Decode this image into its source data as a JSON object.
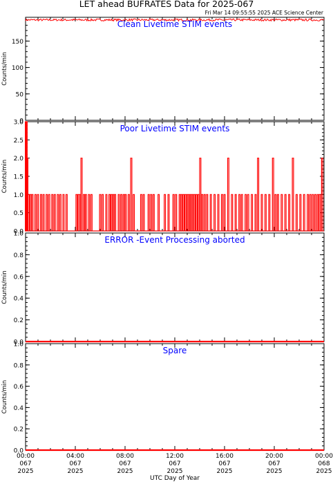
{
  "header": {
    "title": "LET ahead BUFRATES Data for 2025-067",
    "timestamp": "Fri Mar 14 09:55:55 2025 ACE Science Center"
  },
  "colors": {
    "data": "#ff0000",
    "panel_title": "#0000ff",
    "axes": "#000000",
    "background": "#ffffff"
  },
  "xaxis": {
    "label": "UTC Day of Year",
    "range_hours": [
      0,
      24
    ],
    "ticks": [
      {
        "hour": 0,
        "time": "00:00",
        "doy": "067",
        "year": "2025"
      },
      {
        "hour": 4,
        "time": "04:00",
        "doy": "067",
        "year": "2025"
      },
      {
        "hour": 8,
        "time": "08:00",
        "doy": "067",
        "year": "2025"
      },
      {
        "hour": 12,
        "time": "12:00",
        "doy": "067",
        "year": "2025"
      },
      {
        "hour": 16,
        "time": "16:00",
        "doy": "067",
        "year": "2025"
      },
      {
        "hour": 20,
        "time": "20:00",
        "doy": "067",
        "year": "2025"
      },
      {
        "hour": 24,
        "time": "00:00",
        "doy": "068",
        "year": "2025"
      }
    ]
  },
  "chart_data": [
    {
      "type": "line",
      "title": "Clean Livetime STIM events",
      "ylabel": "Counts/min",
      "ylim": [
        0,
        195
      ],
      "yticks": [
        0,
        50,
        100,
        150
      ],
      "ytick_labels": [
        "0",
        "50",
        "100",
        "150"
      ],
      "series": [
        {
          "x": [
            0.0,
            24.0
          ],
          "y": [
            190,
            190
          ],
          "noise": 2
        }
      ]
    },
    {
      "type": "line",
      "title": "Poor Livetime STIM events",
      "ylabel": "Counts/min",
      "ylim": [
        0,
        3.0
      ],
      "yticks": [
        0.0,
        0.5,
        1.0,
        1.5,
        2.0,
        2.5,
        3.0
      ],
      "ytick_labels": [
        "0.0",
        "0.5",
        "1.0",
        "1.5",
        "2.0",
        "2.5",
        "3.0"
      ],
      "baseline": 0,
      "spikes": [
        {
          "x": 0.03,
          "y": 3
        },
        {
          "x": 0.08,
          "y": 3
        },
        {
          "x": 0.14,
          "y": 2
        },
        {
          "x": 0.25,
          "y": 1
        },
        {
          "x": 0.4,
          "y": 1
        },
        {
          "x": 0.55,
          "y": 1
        },
        {
          "x": 0.8,
          "y": 1
        },
        {
          "x": 1.0,
          "y": 1
        },
        {
          "x": 1.25,
          "y": 1
        },
        {
          "x": 1.45,
          "y": 1
        },
        {
          "x": 1.7,
          "y": 1
        },
        {
          "x": 1.9,
          "y": 1
        },
        {
          "x": 2.15,
          "y": 1
        },
        {
          "x": 2.35,
          "y": 1
        },
        {
          "x": 2.6,
          "y": 1
        },
        {
          "x": 2.8,
          "y": 1
        },
        {
          "x": 3.05,
          "y": 1
        },
        {
          "x": 3.3,
          "y": 1
        },
        {
          "x": 4.1,
          "y": 1
        },
        {
          "x": 4.25,
          "y": 1
        },
        {
          "x": 4.35,
          "y": 1
        },
        {
          "x": 4.5,
          "y": 2
        },
        {
          "x": 4.7,
          "y": 1
        },
        {
          "x": 4.85,
          "y": 1
        },
        {
          "x": 5.1,
          "y": 1
        },
        {
          "x": 5.3,
          "y": 1
        },
        {
          "x": 6.0,
          "y": 1
        },
        {
          "x": 6.2,
          "y": 1
        },
        {
          "x": 6.5,
          "y": 1
        },
        {
          "x": 6.75,
          "y": 1
        },
        {
          "x": 6.9,
          "y": 1
        },
        {
          "x": 7.05,
          "y": 1
        },
        {
          "x": 7.2,
          "y": 1
        },
        {
          "x": 7.5,
          "y": 1
        },
        {
          "x": 7.7,
          "y": 1
        },
        {
          "x": 7.9,
          "y": 1
        },
        {
          "x": 8.05,
          "y": 1
        },
        {
          "x": 8.3,
          "y": 1
        },
        {
          "x": 8.5,
          "y": 2
        },
        {
          "x": 8.7,
          "y": 1
        },
        {
          "x": 9.3,
          "y": 1
        },
        {
          "x": 9.5,
          "y": 1
        },
        {
          "x": 9.9,
          "y": 1
        },
        {
          "x": 10.1,
          "y": 1
        },
        {
          "x": 10.3,
          "y": 1
        },
        {
          "x": 10.7,
          "y": 1
        },
        {
          "x": 11.2,
          "y": 1
        },
        {
          "x": 11.5,
          "y": 1
        },
        {
          "x": 11.9,
          "y": 1
        },
        {
          "x": 12.1,
          "y": 1
        },
        {
          "x": 12.4,
          "y": 1
        },
        {
          "x": 12.55,
          "y": 1
        },
        {
          "x": 12.7,
          "y": 1
        },
        {
          "x": 12.85,
          "y": 1
        },
        {
          "x": 13.0,
          "y": 1
        },
        {
          "x": 13.15,
          "y": 1
        },
        {
          "x": 13.3,
          "y": 1
        },
        {
          "x": 13.45,
          "y": 1
        },
        {
          "x": 13.6,
          "y": 1
        },
        {
          "x": 13.75,
          "y": 1
        },
        {
          "x": 13.9,
          "y": 1
        },
        {
          "x": 14.05,
          "y": 2
        },
        {
          "x": 14.2,
          "y": 1
        },
        {
          "x": 14.4,
          "y": 1
        },
        {
          "x": 14.6,
          "y": 1
        },
        {
          "x": 14.9,
          "y": 1
        },
        {
          "x": 15.2,
          "y": 1
        },
        {
          "x": 15.5,
          "y": 1
        },
        {
          "x": 15.8,
          "y": 1
        },
        {
          "x": 16.0,
          "y": 1
        },
        {
          "x": 16.3,
          "y": 2
        },
        {
          "x": 16.6,
          "y": 1
        },
        {
          "x": 16.9,
          "y": 1
        },
        {
          "x": 17.2,
          "y": 1
        },
        {
          "x": 17.4,
          "y": 1
        },
        {
          "x": 17.7,
          "y": 1
        },
        {
          "x": 17.9,
          "y": 1
        },
        {
          "x": 18.2,
          "y": 1
        },
        {
          "x": 18.5,
          "y": 1
        },
        {
          "x": 18.7,
          "y": 2
        },
        {
          "x": 19.0,
          "y": 1
        },
        {
          "x": 19.3,
          "y": 1
        },
        {
          "x": 19.6,
          "y": 1
        },
        {
          "x": 19.9,
          "y": 2
        },
        {
          "x": 20.1,
          "y": 1
        },
        {
          "x": 20.3,
          "y": 1
        },
        {
          "x": 20.6,
          "y": 1
        },
        {
          "x": 20.9,
          "y": 1
        },
        {
          "x": 21.2,
          "y": 1
        },
        {
          "x": 21.5,
          "y": 2
        },
        {
          "x": 21.8,
          "y": 1
        },
        {
          "x": 22.1,
          "y": 1
        },
        {
          "x": 22.4,
          "y": 1
        },
        {
          "x": 22.7,
          "y": 1
        },
        {
          "x": 22.9,
          "y": 1
        },
        {
          "x": 23.1,
          "y": 1
        },
        {
          "x": 23.3,
          "y": 1
        },
        {
          "x": 23.5,
          "y": 1
        },
        {
          "x": 23.65,
          "y": 1
        },
        {
          "x": 23.85,
          "y": 2
        }
      ]
    },
    {
      "type": "line",
      "title": "ERROR -Event Processing aborted",
      "ylabel": "Counts/min",
      "ylim": [
        0,
        1.0
      ],
      "yticks": [
        0.0,
        0.2,
        0.4,
        0.6,
        0.8,
        1.0
      ],
      "ytick_labels": [
        "0.0",
        "0.2",
        "0.4",
        "0.6",
        "0.8",
        "1.0"
      ],
      "series": [
        {
          "x": [
            0.0,
            24.0
          ],
          "y": [
            0,
            0
          ]
        }
      ]
    },
    {
      "type": "line",
      "title": "Spare",
      "ylabel": "Counts/min",
      "ylim": [
        0,
        1.0
      ],
      "yticks": [
        0.0,
        0.2,
        0.4,
        0.6,
        0.8,
        1.0
      ],
      "ytick_labels": [
        "0.0",
        "0.2",
        "0.4",
        "0.6",
        "0.8",
        "1.0"
      ],
      "series": [
        {
          "x": [
            0.0,
            24.0
          ],
          "y": [
            0,
            0
          ]
        }
      ]
    }
  ]
}
